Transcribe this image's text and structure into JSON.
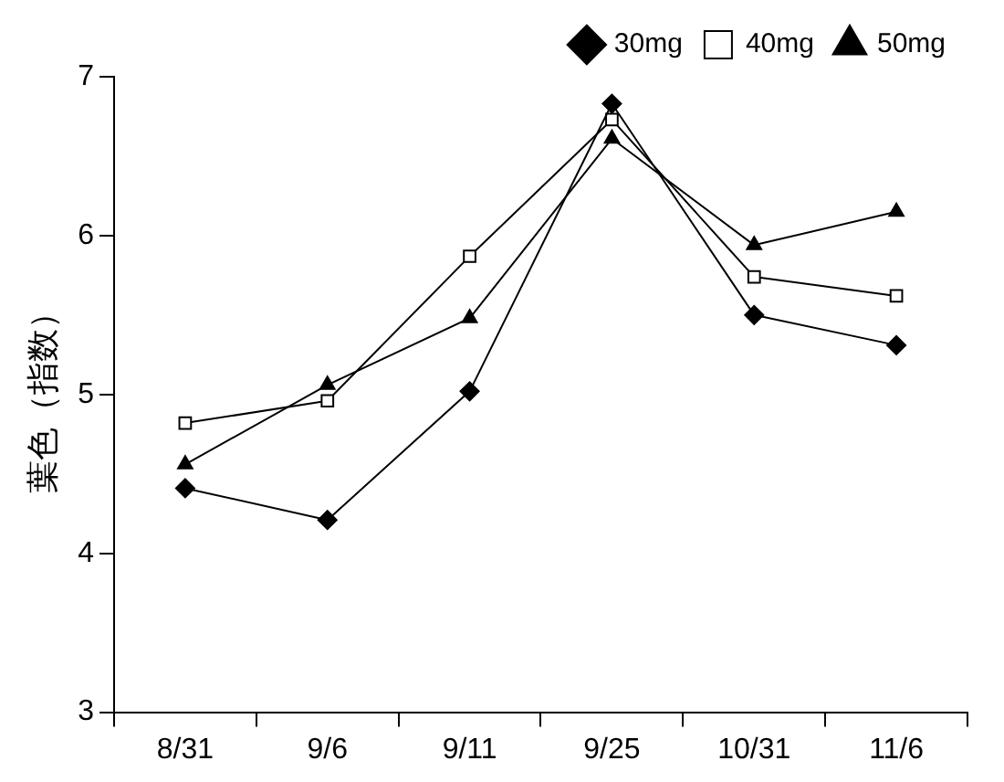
{
  "chart_data": {
    "type": "line",
    "ylabel": "葉色（指数）",
    "categories": [
      "8/31",
      "9/6",
      "9/11",
      "9/25",
      "10/31",
      "11/6"
    ],
    "series": [
      {
        "name": "30mg",
        "color": "#000000",
        "marker": "diamond",
        "values": [
          4.41,
          4.21,
          5.02,
          6.83,
          5.5,
          5.31
        ]
      },
      {
        "name": "40mg",
        "color": "#000000",
        "marker": "square",
        "values": [
          4.82,
          4.96,
          5.87,
          6.73,
          5.74,
          5.62
        ]
      },
      {
        "name": "50mg",
        "color": "#000000",
        "marker": "triangle",
        "values": [
          4.56,
          5.06,
          5.48,
          6.61,
          5.94,
          6.15
        ]
      }
    ],
    "ylim": [
      3,
      7
    ],
    "yticks": [
      3,
      4,
      5,
      6,
      7
    ],
    "grid": false,
    "legend": "top right",
    "line_style": "solid"
  }
}
